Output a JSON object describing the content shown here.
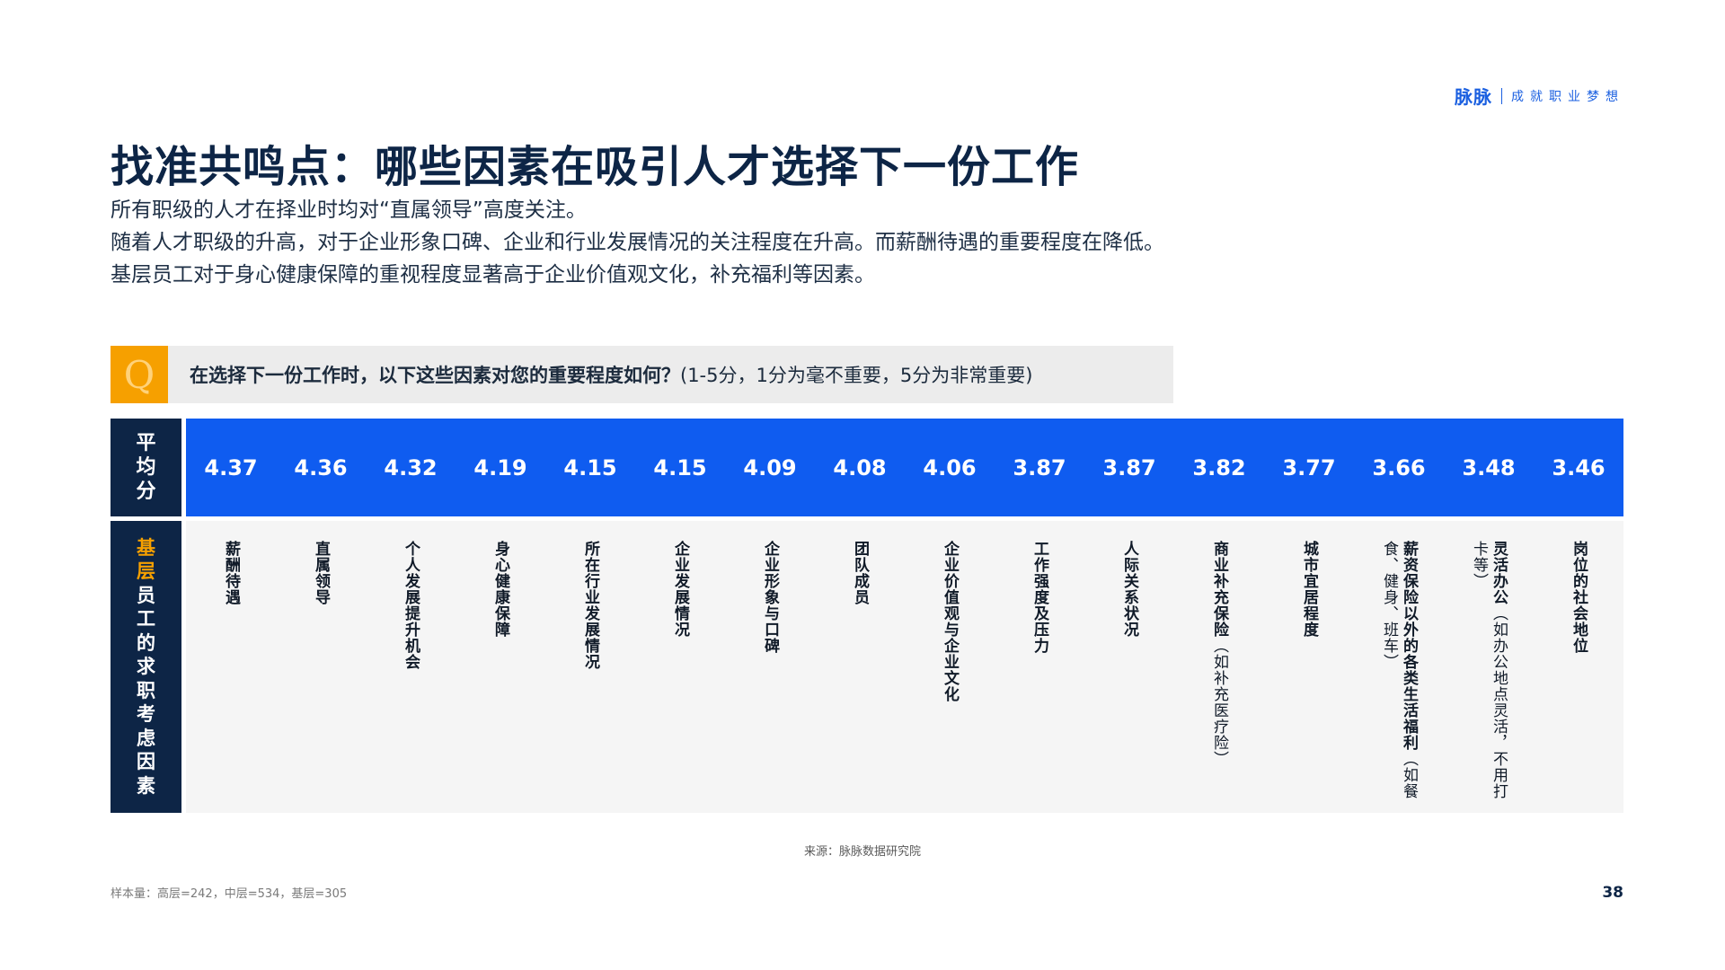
{
  "brand": {
    "logo": "脉脉",
    "slogan": "成就职业梦想"
  },
  "title": "找准共鸣点：哪些因素在吸引人才选择下一份工作",
  "subtitles": [
    "所有职级的人才在择业时均对“直属领导”高度关注。",
    "随着人才职级的升高，对于企业形象口碑、企业和行业发展情况的关注程度在升高。而薪酬待遇的重要程度在降低。",
    "基层员工对于身心健康保障的重视程度显著高于企业价值观文化，补充福利等因素。"
  ],
  "question": {
    "icon": "Q",
    "bold": "在选择下一份工作时，以下这些因素对您的重要程度如何？",
    "note": "(1-5分，1分为毫不重要，5分为非常重要)"
  },
  "score_label": [
    "平",
    "均",
    "分"
  ],
  "factor_label": {
    "orange": [
      "基",
      "层"
    ],
    "white": [
      "员",
      "工",
      "的",
      "求",
      "职",
      "考",
      "虑",
      "因",
      "素"
    ]
  },
  "table": [
    {
      "score": "4.37",
      "factor": "薪酬待遇",
      "extra": ""
    },
    {
      "score": "4.36",
      "factor": "直属领导",
      "extra": ""
    },
    {
      "score": "4.32",
      "factor": "个人发展提升机会",
      "extra": ""
    },
    {
      "score": "4.19",
      "factor": "身心健康保障",
      "extra": ""
    },
    {
      "score": "4.15",
      "factor": "所在行业发展情况",
      "extra": ""
    },
    {
      "score": "4.15",
      "factor": "企业发展情况",
      "extra": ""
    },
    {
      "score": "4.09",
      "factor": "企业形象与口碑",
      "extra": ""
    },
    {
      "score": "4.08",
      "factor": "团队成员",
      "extra": ""
    },
    {
      "score": "4.06",
      "factor": "企业价值观与企业文化",
      "extra": ""
    },
    {
      "score": "3.87",
      "factor": "工作强度及压力",
      "extra": ""
    },
    {
      "score": "3.87",
      "factor": "人际关系状况",
      "extra": ""
    },
    {
      "score": "3.82",
      "factor": "商业补充保险",
      "extra": "（如补充医疗险）"
    },
    {
      "score": "3.77",
      "factor": "城市宜居程度",
      "extra": ""
    },
    {
      "score": "3.66",
      "factor": "薪资保险以外的各类生活福利",
      "extra": "（如餐食、健身、班车）"
    },
    {
      "score": "3.48",
      "factor": "灵活办公",
      "extra": "（如办公地点灵活，不用打卡等）"
    },
    {
      "score": "3.46",
      "factor": "岗位的社会地位",
      "extra": ""
    }
  ],
  "source": "来源：脉脉数据研究院",
  "sample": "样本量：高层=242，中层=534，基层=305",
  "page_number": "38"
}
